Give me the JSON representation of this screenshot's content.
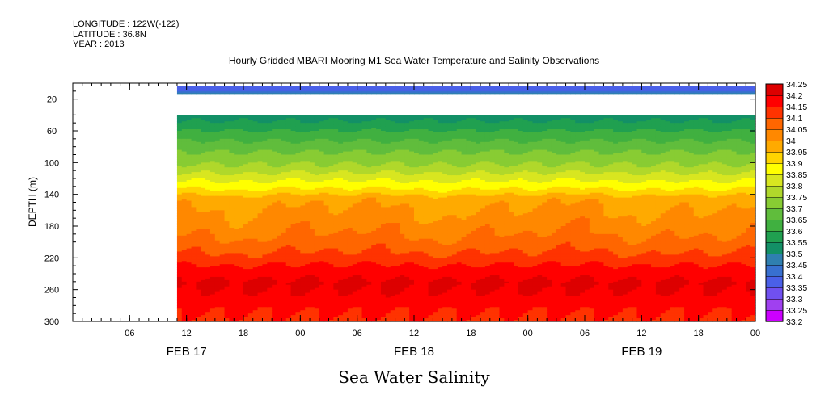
{
  "header": {
    "longitude": "LONGITUDE : 122W(-122)",
    "latitude": "LATITUDE : 36.8N",
    "year": "YEAR : 2013"
  },
  "chart_data": {
    "type": "heatmap",
    "title": "Hourly Gridded MBARI Mooring M1 Sea Water Temperature and Salinity Observations",
    "xlabel": "Sea Water Salinity",
    "ylabel": "DEPTH (m)",
    "y_range_m": [
      0,
      300
    ],
    "y_inverted": true,
    "y_ticks": [
      20,
      60,
      100,
      140,
      180,
      220,
      260,
      300
    ],
    "x_range_hours_since_feb17_00": [
      0,
      72
    ],
    "x_data_start_hour": 11,
    "x_ticks": [
      {
        "hour": 6,
        "label": "06"
      },
      {
        "hour": 12,
        "label": "12"
      },
      {
        "hour": 18,
        "label": "18"
      },
      {
        "hour": 24,
        "label": "00"
      },
      {
        "hour": 30,
        "label": "06"
      },
      {
        "hour": 36,
        "label": "12"
      },
      {
        "hour": 42,
        "label": "18"
      },
      {
        "hour": 48,
        "label": "00"
      },
      {
        "hour": 54,
        "label": "06"
      },
      {
        "hour": 60,
        "label": "12"
      },
      {
        "hour": 66,
        "label": "18"
      },
      {
        "hour": 72,
        "label": "00"
      }
    ],
    "x_day_labels": [
      {
        "hour": 12,
        "label": "FEB 17"
      },
      {
        "hour": 36,
        "label": "FEB 18"
      },
      {
        "hour": 60,
        "label": "FEB 19"
      }
    ],
    "colorbar": {
      "levels": [
        "33.2",
        "33.25",
        "33.3",
        "33.35",
        "33.4",
        "33.45",
        "33.5",
        "33.55",
        "33.6",
        "33.65",
        "33.7",
        "33.75",
        "33.8",
        "33.85",
        "33.9",
        "33.95",
        "34",
        "34.05",
        "34.1",
        "34.15",
        "34.2",
        "34.25"
      ],
      "colors": [
        "#cc00ff",
        "#a040f0",
        "#7050f0",
        "#4a60e8",
        "#3870d0",
        "#2f7fb0",
        "#139066",
        "#20a050",
        "#40b040",
        "#60bd3c",
        "#88cc33",
        "#b0d82b",
        "#d8e620",
        "#ffff00",
        "#ffd400",
        "#ffaa00",
        "#ff8800",
        "#ff6600",
        "#ff3300",
        "#ff0000",
        "#dd0000",
        "#aa0000"
      ]
    },
    "profile": [
      {
        "depth_m": 8,
        "salinity": 33.38
      },
      {
        "depth_m": 12,
        "salinity": 33.45
      },
      {
        "depth_m": 40,
        "salinity": 33.52
      },
      {
        "depth_m": 50,
        "salinity": 33.56
      },
      {
        "depth_m": 60,
        "salinity": 33.6
      },
      {
        "depth_m": 75,
        "salinity": 33.66
      },
      {
        "depth_m": 90,
        "salinity": 33.71
      },
      {
        "depth_m": 105,
        "salinity": 33.76
      },
      {
        "depth_m": 115,
        "salinity": 33.81
      },
      {
        "depth_m": 125,
        "salinity": 33.86
      },
      {
        "depth_m": 135,
        "salinity": 33.91
      },
      {
        "depth_m": 145,
        "salinity": 33.98
      },
      {
        "depth_m": 165,
        "salinity": 34.01
      },
      {
        "depth_m": 185,
        "salinity": 34.04
      },
      {
        "depth_m": 205,
        "salinity": 34.08
      },
      {
        "depth_m": 220,
        "salinity": 34.12
      },
      {
        "depth_m": 235,
        "salinity": 34.17
      },
      {
        "depth_m": 252,
        "salinity": 34.21
      },
      {
        "depth_m": 268,
        "salinity": 34.19
      },
      {
        "depth_m": 282,
        "salinity": 34.16
      },
      {
        "depth_m": 300,
        "salinity": 34.14
      }
    ],
    "no_data_depth_range_m": [
      14,
      40
    ]
  }
}
